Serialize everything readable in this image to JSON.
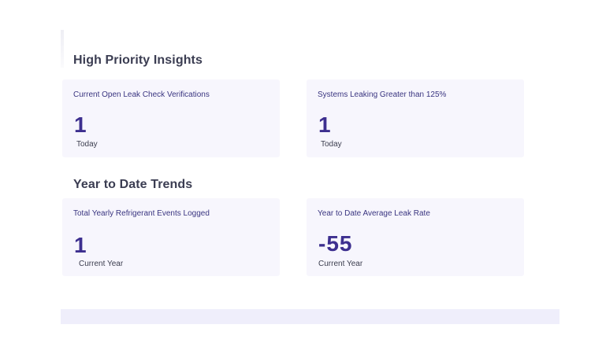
{
  "sections": [
    {
      "title": "High Priority Insights",
      "cards": [
        {
          "label": "Current Open Leak Check Verifications",
          "value": "1",
          "sub": "Today"
        },
        {
          "label": "Systems Leaking Greater than 125%",
          "value": "1",
          "sub": "Today"
        }
      ]
    },
    {
      "title": "Year to Date Trends",
      "cards": [
        {
          "label": "Total Yearly Refrigerant Events Logged",
          "value": "1",
          "sub": "Current Year"
        },
        {
          "label": "Year to Date Average Leak Rate",
          "value": "-55",
          "sub": "Current Year"
        }
      ]
    }
  ],
  "colors": {
    "accent": "#3d2f8f",
    "card_bg": "#f7f6fd",
    "label": "#3a3580",
    "footer_bar": "#efeefb"
  }
}
